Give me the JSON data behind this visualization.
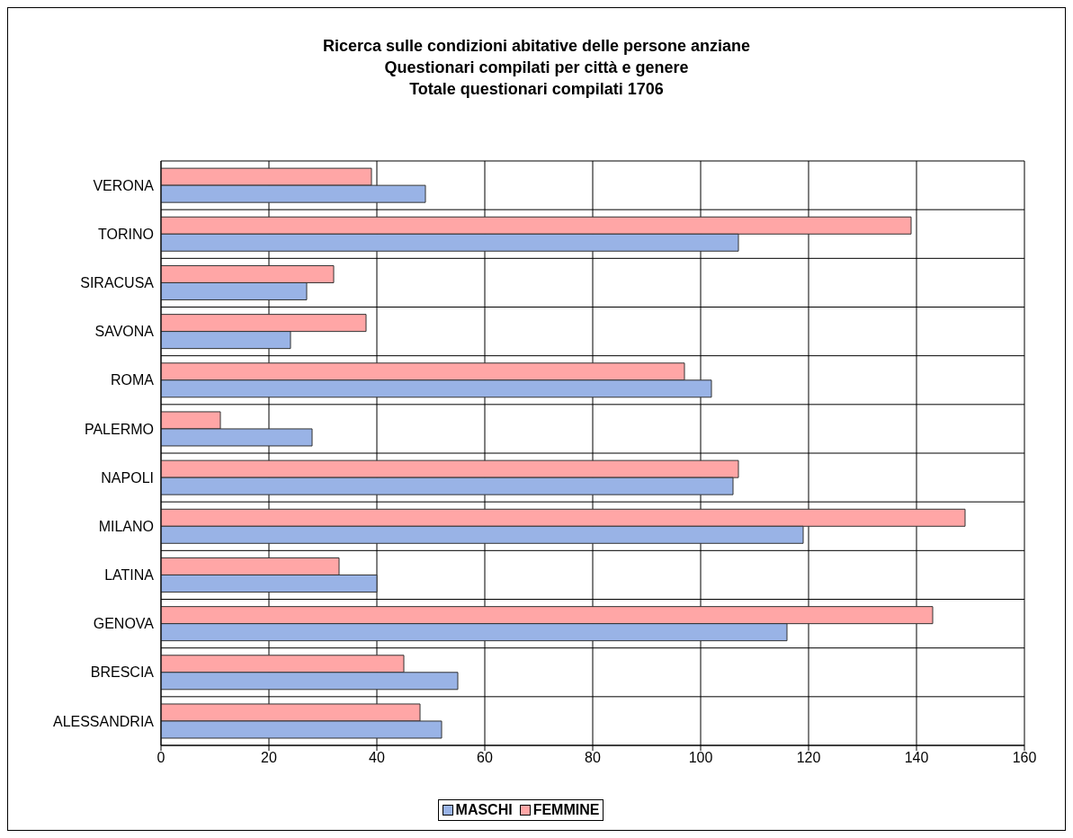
{
  "chart_data": {
    "type": "bar",
    "orientation": "horizontal",
    "title": "Ricerca sulle condizioni abitative delle persone anziane\nQuestionari compilati per città e genere\nTotale questionari compilati 1706",
    "categories": [
      "VERONA",
      "TORINO",
      "SIRACUSA",
      "SAVONA",
      "ROMA",
      "PALERMO",
      "NAPOLI",
      "MILANO",
      "LATINA",
      "GENOVA",
      "BRESCIA",
      "ALESSANDRIA"
    ],
    "series": [
      {
        "name": "MASCHI",
        "color": "#99b3e6",
        "values": [
          49,
          107,
          27,
          24,
          102,
          28,
          106,
          119,
          40,
          116,
          55,
          52
        ]
      },
      {
        "name": "FEMMINE",
        "color": "#ffa6a6",
        "values": [
          39,
          139,
          32,
          38,
          97,
          11,
          107,
          149,
          33,
          143,
          45,
          48
        ]
      }
    ],
    "xlim": [
      0,
      160
    ],
    "xticks": [
      0,
      20,
      40,
      60,
      80,
      100,
      120,
      140,
      160
    ],
    "grid": true,
    "legend": "bottom"
  }
}
